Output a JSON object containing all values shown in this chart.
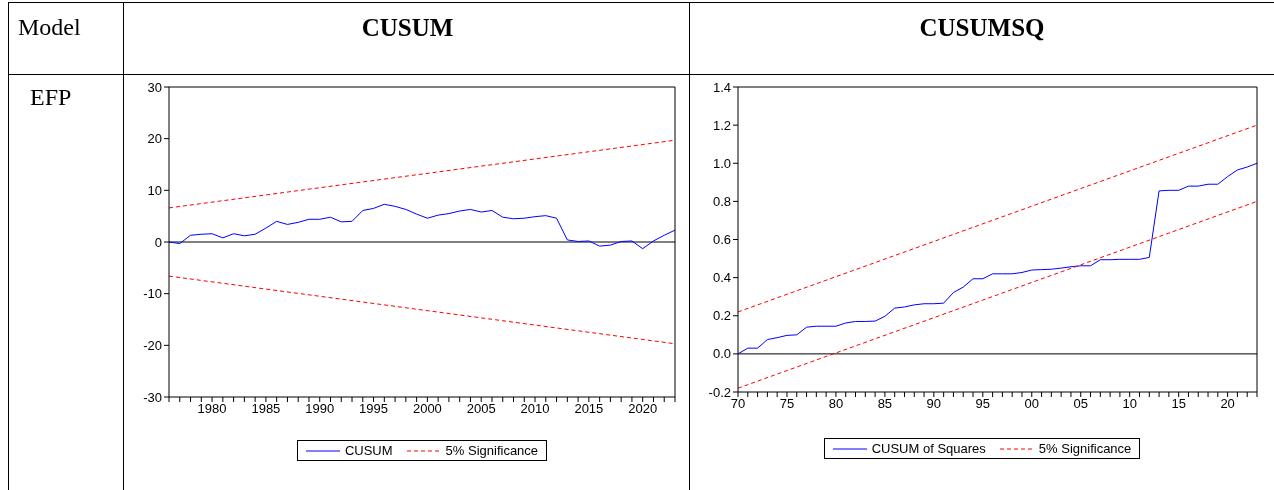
{
  "chart_data": [
    {
      "type": "line",
      "title": "CUSUM",
      "annotations": [
        "Model",
        "EFP"
      ],
      "legend": "bottom",
      "marker": "none",
      "grid": false,
      "x": [
        1976,
        1977,
        1978,
        1979,
        1980,
        1981,
        1982,
        1983,
        1984,
        1985,
        1986,
        1987,
        1988,
        1989,
        1990,
        1991,
        1992,
        1993,
        1994,
        1995,
        1996,
        1997,
        1998,
        1999,
        2000,
        2001,
        2002,
        2003,
        2004,
        2005,
        2006,
        2007,
        2008,
        2009,
        2010,
        2011,
        2012,
        2013,
        2014,
        2015,
        2016,
        2017,
        2018,
        2019,
        2020,
        2021,
        2022,
        2023
      ],
      "series": [
        {
          "name": "CUSUM",
          "color": "#0000ff",
          "line_style": "solid",
          "values": [
            0,
            -0.3,
            1.3,
            1.5,
            1.6,
            0.8,
            1.6,
            1.2,
            1.5,
            2.7,
            4.0,
            3.4,
            3.8,
            4.4,
            4.4,
            4.8,
            3.9,
            4.0,
            6.1,
            6.5,
            7.3,
            6.9,
            6.3,
            5.4,
            4.6,
            5.2,
            5.5,
            6.0,
            6.3,
            5.8,
            6.1,
            4.8,
            4.5,
            4.6,
            4.9,
            5.1,
            4.6,
            0.4,
            0.1,
            0.2,
            -0.8,
            -0.6,
            0.1,
            0.2,
            -1.3,
            0.2,
            1.3,
            2.3
          ]
        },
        {
          "name": "5% Significance",
          "color": "#ff0000",
          "line_style": "dashed",
          "x": [
            1976,
            2023
          ],
          "values": [
            6.6,
            19.7
          ]
        },
        {
          "color": "#ff0000",
          "line_style": "dashed",
          "x": [
            1976,
            2023
          ],
          "values": [
            -6.6,
            -19.7
          ]
        }
      ],
      "ref_lines": [
        {
          "axis": "y",
          "value": 0,
          "color": "#000000"
        }
      ],
      "xlim": [
        1976,
        2023
      ],
      "xticks": [
        {
          "value": 1976,
          "label": null
        },
        {
          "value": 1977,
          "label": null
        },
        {
          "value": 1978,
          "label": null
        },
        {
          "value": 1979,
          "label": null
        },
        1980,
        {
          "value": 1981,
          "label": null
        },
        {
          "value": 1982,
          "label": null
        },
        {
          "value": 1983,
          "label": null
        },
        {
          "value": 1984,
          "label": null
        },
        1985,
        {
          "value": 1986,
          "label": null
        },
        {
          "value": 1987,
          "label": null
        },
        {
          "value": 1988,
          "label": null
        },
        {
          "value": 1989,
          "label": null
        },
        1990,
        {
          "value": 1991,
          "label": null
        },
        {
          "value": 1992,
          "label": null
        },
        {
          "value": 1993,
          "label": null
        },
        {
          "value": 1994,
          "label": null
        },
        1995,
        {
          "value": 1996,
          "label": null
        },
        {
          "value": 1997,
          "label": null
        },
        {
          "value": 1998,
          "label": null
        },
        {
          "value": 1999,
          "label": null
        },
        2000,
        {
          "value": 2001,
          "label": null
        },
        {
          "value": 2002,
          "label": null
        },
        {
          "value": 2003,
          "label": null
        },
        {
          "value": 2004,
          "label": null
        },
        2005,
        {
          "value": 2006,
          "label": null
        },
        {
          "value": 2007,
          "label": null
        },
        {
          "value": 2008,
          "label": null
        },
        {
          "value": 2009,
          "label": null
        },
        2010,
        {
          "value": 2011,
          "label": null
        },
        {
          "value": 2012,
          "label": null
        },
        {
          "value": 2013,
          "label": null
        },
        {
          "value": 2014,
          "label": null
        },
        2015,
        {
          "value": 2016,
          "label": null
        },
        {
          "value": 2017,
          "label": null
        },
        {
          "value": 2018,
          "label": null
        },
        {
          "value": 2019,
          "label": null
        },
        2020,
        {
          "value": 2021,
          "label": null
        },
        {
          "value": 2022,
          "label": null
        },
        {
          "value": 2023,
          "label": null
        }
      ],
      "ylim": [
        -30,
        30
      ],
      "yticks": [
        -30,
        -20,
        -10,
        0,
        10,
        20,
        30
      ]
    },
    {
      "type": "line",
      "title": "CUSUMSQ",
      "legend": "bottom",
      "marker": "none",
      "grid": false,
      "x": [
        1970,
        1971,
        1972,
        1973,
        1974,
        1975,
        1976,
        1977,
        1978,
        1979,
        1980,
        1981,
        1982,
        1983,
        1984,
        1985,
        1986,
        1987,
        1988,
        1989,
        1990,
        1991,
        1992,
        1993,
        1994,
        1995,
        1996,
        1997,
        1998,
        1999,
        2000,
        2001,
        2002,
        2003,
        2004,
        2005,
        2006,
        2007,
        2008,
        2009,
        2010,
        2011,
        2012,
        2013,
        2014,
        2015,
        2016,
        2017,
        2018,
        2019,
        2020,
        2021,
        2022,
        2023
      ],
      "series": [
        {
          "name": "CUSUM of Squares",
          "color": "#0000ff",
          "line_style": "solid",
          "values": [
            0.0,
            0.03,
            0.03,
            0.075,
            0.085,
            0.097,
            0.1,
            0.14,
            0.145,
            0.145,
            0.145,
            0.162,
            0.17,
            0.17,
            0.172,
            0.197,
            0.24,
            0.246,
            0.257,
            0.263,
            0.263,
            0.266,
            0.322,
            0.35,
            0.394,
            0.394,
            0.42,
            0.42,
            0.42,
            0.427,
            0.44,
            0.442,
            0.444,
            0.45,
            0.457,
            0.462,
            0.462,
            0.494,
            0.494,
            0.496,
            0.496,
            0.496,
            0.506,
            0.855,
            0.858,
            0.858,
            0.88,
            0.88,
            0.89,
            0.89,
            0.93,
            0.965,
            0.98,
            1.0
          ]
        },
        {
          "name": "5% Significance",
          "color": "#ff0000",
          "line_style": "dashed",
          "x": [
            1970,
            2023
          ],
          "values": [
            0.22,
            1.2
          ]
        },
        {
          "color": "#ff0000",
          "line_style": "dashed",
          "x": [
            1970,
            2023
          ],
          "values": [
            -0.18,
            0.8
          ]
        }
      ],
      "ref_lines": [
        {
          "axis": "y",
          "value": 0,
          "color": "#000000"
        }
      ],
      "xlim": [
        1970,
        2023
      ],
      "xticks": [
        {
          "value": 1970,
          "label": "70"
        },
        {
          "value": 1971,
          "label": null
        },
        {
          "value": 1972,
          "label": null
        },
        {
          "value": 1973,
          "label": null
        },
        {
          "value": 1974,
          "label": null
        },
        {
          "value": 1975,
          "label": "75"
        },
        {
          "value": 1976,
          "label": null
        },
        {
          "value": 1977,
          "label": null
        },
        {
          "value": 1978,
          "label": null
        },
        {
          "value": 1979,
          "label": null
        },
        {
          "value": 1980,
          "label": "80"
        },
        {
          "value": 1981,
          "label": null
        },
        {
          "value": 1982,
          "label": null
        },
        {
          "value": 1983,
          "label": null
        },
        {
          "value": 1984,
          "label": null
        },
        {
          "value": 1985,
          "label": "85"
        },
        {
          "value": 1986,
          "label": null
        },
        {
          "value": 1987,
          "label": null
        },
        {
          "value": 1988,
          "label": null
        },
        {
          "value": 1989,
          "label": null
        },
        {
          "value": 1990,
          "label": "90"
        },
        {
          "value": 1991,
          "label": null
        },
        {
          "value": 1992,
          "label": null
        },
        {
          "value": 1993,
          "label": null
        },
        {
          "value": 1994,
          "label": null
        },
        {
          "value": 1995,
          "label": "95"
        },
        {
          "value": 1996,
          "label": null
        },
        {
          "value": 1997,
          "label": null
        },
        {
          "value": 1998,
          "label": null
        },
        {
          "value": 1999,
          "label": null
        },
        {
          "value": 2000,
          "label": "00"
        },
        {
          "value": 2001,
          "label": null
        },
        {
          "value": 2002,
          "label": null
        },
        {
          "value": 2003,
          "label": null
        },
        {
          "value": 2004,
          "label": null
        },
        {
          "value": 2005,
          "label": "05"
        },
        {
          "value": 2006,
          "label": null
        },
        {
          "value": 2007,
          "label": null
        },
        {
          "value": 2008,
          "label": null
        },
        {
          "value": 2009,
          "label": null
        },
        {
          "value": 2010,
          "label": "10"
        },
        {
          "value": 2011,
          "label": null
        },
        {
          "value": 2012,
          "label": null
        },
        {
          "value": 2013,
          "label": null
        },
        {
          "value": 2014,
          "label": null
        },
        {
          "value": 2015,
          "label": "15"
        },
        {
          "value": 2016,
          "label": null
        },
        {
          "value": 2017,
          "label": null
        },
        {
          "value": 2018,
          "label": null
        },
        {
          "value": 2019,
          "label": null
        },
        {
          "value": 2020,
          "label": "20"
        },
        {
          "value": 2021,
          "label": null
        },
        {
          "value": 2022,
          "label": null
        },
        {
          "value": 2023,
          "label": null
        }
      ],
      "ylim": [
        -0.2,
        1.4
      ],
      "yticks": [
        {
          "value": -0.2,
          "label": "-0.2"
        },
        {
          "value": 0,
          "label": "0.0"
        },
        0.2,
        0.4,
        0.6,
        0.8,
        {
          "value": 1,
          "label": "1.0"
        },
        1.2,
        1.4
      ]
    }
  ]
}
